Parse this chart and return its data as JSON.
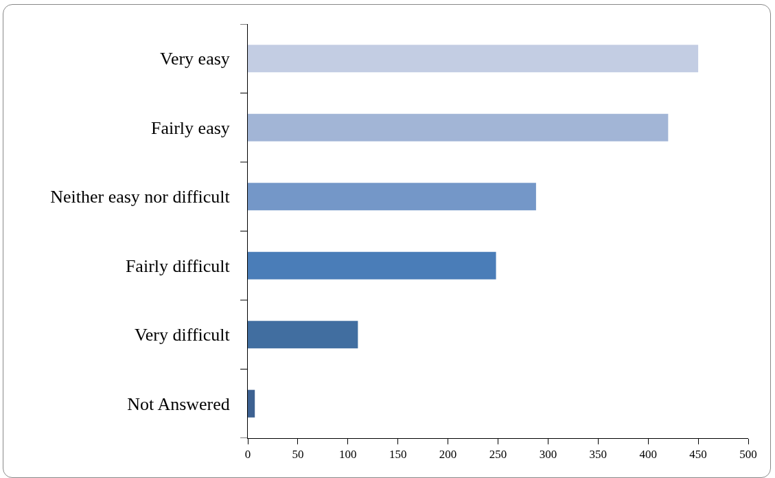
{
  "chart_data": {
    "type": "bar",
    "orientation": "horizontal",
    "categories": [
      "Very easy",
      "Fairly easy",
      "Neither easy nor difficult",
      "Fairly difficult",
      "Very difficult",
      "Not Answered"
    ],
    "values": [
      450,
      420,
      288,
      248,
      110,
      7
    ],
    "colors": [
      "#c3cde3",
      "#a2b5d6",
      "#7497c8",
      "#4a7db8",
      "#416ea0",
      "#3d6191"
    ],
    "xlim": [
      0,
      500
    ],
    "xticks": [
      0,
      50,
      100,
      150,
      200,
      250,
      300,
      350,
      400,
      450,
      500
    ],
    "grid": false,
    "legend": false
  }
}
